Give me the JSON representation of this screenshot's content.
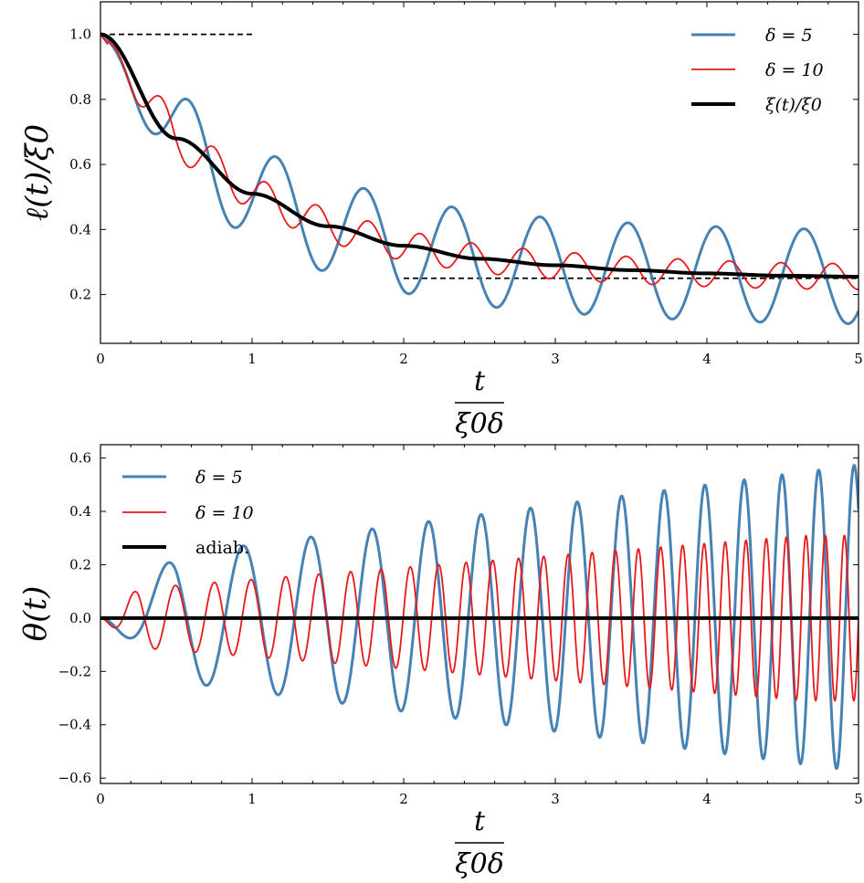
{
  "chart_data": [
    {
      "type": "line",
      "xlabel": "t / ξ0δ",
      "ylabel": "ℓ(t)/ξ0",
      "xlim": [
        0,
        5
      ],
      "ylim": [
        0.05,
        1.1
      ],
      "xticks": [
        "0",
        "1",
        "2",
        "3",
        "4",
        "5"
      ],
      "yticks": [
        "0.2",
        "0.4",
        "0.6",
        "0.8",
        "1.0"
      ],
      "legend_position": "top-right",
      "series": [
        {
          "name": "δ = 5",
          "color": "#4682b4",
          "kind": "oscillation",
          "x": [
            0.0,
            0.72,
            1.03,
            1.35,
            1.6,
            1.85,
            2.1,
            2.35,
            2.5,
            2.7,
            3.0,
            3.3,
            3.5,
            3.8,
            4.1,
            4.2,
            4.5,
            4.8,
            5.0
          ],
          "y": [
            1.0,
            0.47,
            0.65,
            0.3,
            0.54,
            0.22,
            0.48,
            0.2,
            0.45,
            0.18,
            0.43,
            0.15,
            0.42,
            0.14,
            0.42,
            0.13,
            0.4,
            0.12,
            0.2
          ]
        },
        {
          "name": "δ = 10",
          "color": "#e8191b",
          "kind": "oscillation",
          "x": [
            0.0,
            0.45,
            0.6,
            0.78,
            0.96,
            1.12,
            1.3,
            1.5,
            2.0,
            3.0,
            4.0,
            5.0
          ],
          "y": [
            1.0,
            0.66,
            0.73,
            0.5,
            0.6,
            0.41,
            0.53,
            0.38,
            0.41,
            0.31,
            0.33,
            0.29
          ]
        },
        {
          "name": "ξ(t)/ξ0",
          "color": "#000000",
          "kind": "smooth",
          "x": [
            0.0,
            0.5,
            1.0,
            1.5,
            2.0,
            2.5,
            3.0,
            3.5,
            4.0,
            4.5,
            5.0
          ],
          "y": [
            1.0,
            0.68,
            0.51,
            0.41,
            0.35,
            0.31,
            0.29,
            0.275,
            0.265,
            0.258,
            0.255
          ]
        }
      ],
      "reference_lines": [
        {
          "x": [
            0,
            1
          ],
          "y": 1.0
        },
        {
          "x": [
            2,
            5
          ],
          "y": 0.25
        }
      ]
    },
    {
      "type": "line",
      "xlabel": "t / ξ0δ",
      "ylabel": "θ(t)",
      "xlim": [
        0,
        5
      ],
      "ylim": [
        -0.62,
        0.65
      ],
      "xticks": [
        "0",
        "1",
        "2",
        "3",
        "4",
        "5"
      ],
      "yticks": [
        "−0.6",
        "−0.4",
        "−0.2",
        "0.0",
        "0.2",
        "0.4",
        "0.6"
      ],
      "legend_position": "top-left",
      "series": [
        {
          "name": "δ = 5",
          "color": "#4682b4",
          "kind": "oscillation",
          "x": [
            0.0,
            0.55,
            0.85,
            1.23,
            1.47,
            1.77,
            1.95,
            2.22,
            2.4,
            2.63,
            2.75,
            2.97,
            3.05,
            3.3,
            3.37,
            3.58,
            3.65,
            3.84,
            3.93,
            4.1,
            4.2,
            4.35,
            4.45,
            4.6,
            4.7,
            4.8,
            5.0
          ],
          "y": [
            0.0,
            -0.29,
            0.19,
            -0.34,
            0.3,
            -0.39,
            0.38,
            -0.44,
            0.44,
            -0.48,
            0.48,
            -0.5,
            0.51,
            -0.52,
            0.53,
            -0.54,
            0.54,
            -0.55,
            0.55,
            -0.56,
            0.56,
            -0.56,
            0.57,
            -0.57,
            0.57,
            0.575,
            -0.57
          ]
        },
        {
          "name": "δ = 10",
          "color": "#e8191b",
          "kind": "oscillation",
          "x": [
            0.0,
            0.27,
            0.52,
            0.72,
            0.9,
            1.1,
            1.3,
            2.0,
            3.0,
            4.0,
            5.0
          ],
          "y": [
            0.0,
            -0.14,
            0.07,
            -0.16,
            0.11,
            -0.2,
            0.15,
            0.21,
            0.27,
            0.3,
            0.31
          ]
        },
        {
          "name": "adiab.",
          "color": "#000000",
          "kind": "smooth",
          "x": [
            0,
            5
          ],
          "y": [
            0,
            0
          ]
        }
      ]
    }
  ]
}
